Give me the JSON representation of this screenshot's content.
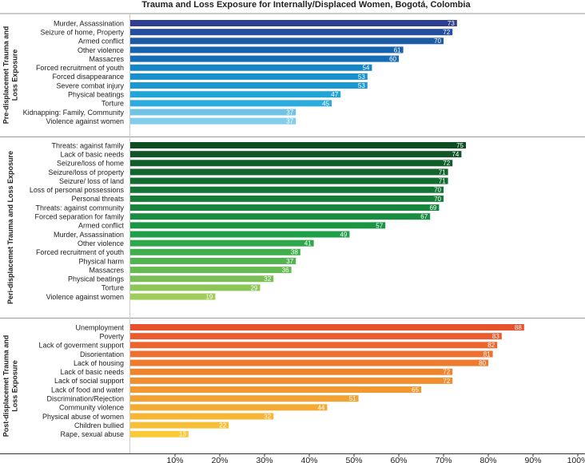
{
  "chart_data": {
    "type": "bar",
    "orientation": "horizontal",
    "title": "Trauma and Loss Exposure for Internally/Displaced Women, Bogotá, Colombia",
    "xlabel": "",
    "ylabel": "",
    "xlim": [
      0,
      100
    ],
    "x_ticks": [
      "10%",
      "20%",
      "30%",
      "40%",
      "50%",
      "60%",
      "70%",
      "80%",
      "90%",
      "100%"
    ],
    "grid": false,
    "groups": [
      {
        "name": "Pre-displacemet Trauma and Loss Exposure",
        "label_lines": [
          "Pre-displacemet Trauma and",
          "Loss Exposure"
        ],
        "categories": [
          "Murder, Assassination",
          "Seizure of home, Property",
          "Armed conflict",
          "Other violence",
          "Massacres",
          "Forced recruitment of youth",
          "Forced disappearance",
          "Severe combat injury",
          "Physical beatings",
          "Torture",
          "Kidnapping: Family, Community",
          "Violence against women"
        ],
        "values": [
          73,
          72,
          70,
          61,
          60,
          54,
          53,
          53,
          47,
          45,
          37,
          37
        ],
        "colors": [
          "#2e3f92",
          "#244e9e",
          "#1b5aa5",
          "#1863ad",
          "#176db5",
          "#1486c6",
          "#1990cc",
          "#1c98d1",
          "#23a4d9",
          "#2aadde",
          "#6fc4e6",
          "#82cdea"
        ]
      },
      {
        "name": "Peri-displacemet Trauma and Loss Exposure",
        "label_lines": [
          "Peri-displacemet Trauma and Loss Exposure"
        ],
        "categories": [
          "Threats: against family",
          "Lack of basic needs",
          "Seizure/loss of home",
          "Seizure/loss of property",
          "Seizure/ loss of land",
          "Loss of personal possessions",
          "Personal threats",
          "Threats: against community",
          "Forced separation for family",
          "Armed conflict",
          "Murder, Assassination",
          "Other violence",
          "Forced recruitment of youth",
          "Physical harm",
          "Massacres",
          "Physical beatings",
          "Torture",
          "Violence against women"
        ],
        "values": [
          75,
          74,
          72,
          71,
          71,
          70,
          70,
          69,
          67,
          57,
          49,
          41,
          38,
          37,
          36,
          32,
          29,
          19
        ],
        "colors": [
          "#0e4d22",
          "#0f5526",
          "#115d2a",
          "#12652d",
          "#136d31",
          "#157535",
          "#167d39",
          "#17853c",
          "#198d40",
          "#1a9544",
          "#1f9f47",
          "#2ca84a",
          "#3fae4d",
          "#52b44f",
          "#65ba52",
          "#78c055",
          "#8bc657",
          "#a0cc5a"
        ]
      },
      {
        "name": "Post-displacemet Trauma and Loss Exposure",
        "label_lines": [
          "Post-displacemet Trauma and",
          "Loss Exposure"
        ],
        "categories": [
          "Unemployment",
          "Poverty",
          "Lack of goverment support",
          "Disorientation",
          "Lack of housing",
          "Lack of basic needs",
          "Lack of social support",
          "Lack of food and water",
          "Discrimination/Rejection",
          "Community violence",
          "Physical abuse of women",
          "Children bullied",
          "Rape, sexual abuse"
        ],
        "values": [
          88,
          83,
          82,
          81,
          80,
          72,
          72,
          65,
          51,
          44,
          32,
          22,
          13
        ],
        "colors": [
          "#e8512e",
          "#ea5c2e",
          "#eb662e",
          "#ed702e",
          "#ee7a2e",
          "#ef842f",
          "#f08e30",
          "#f19831",
          "#f3a232",
          "#f4ab33",
          "#f6b534",
          "#f7bf35",
          "#f9c937"
        ]
      }
    ]
  }
}
